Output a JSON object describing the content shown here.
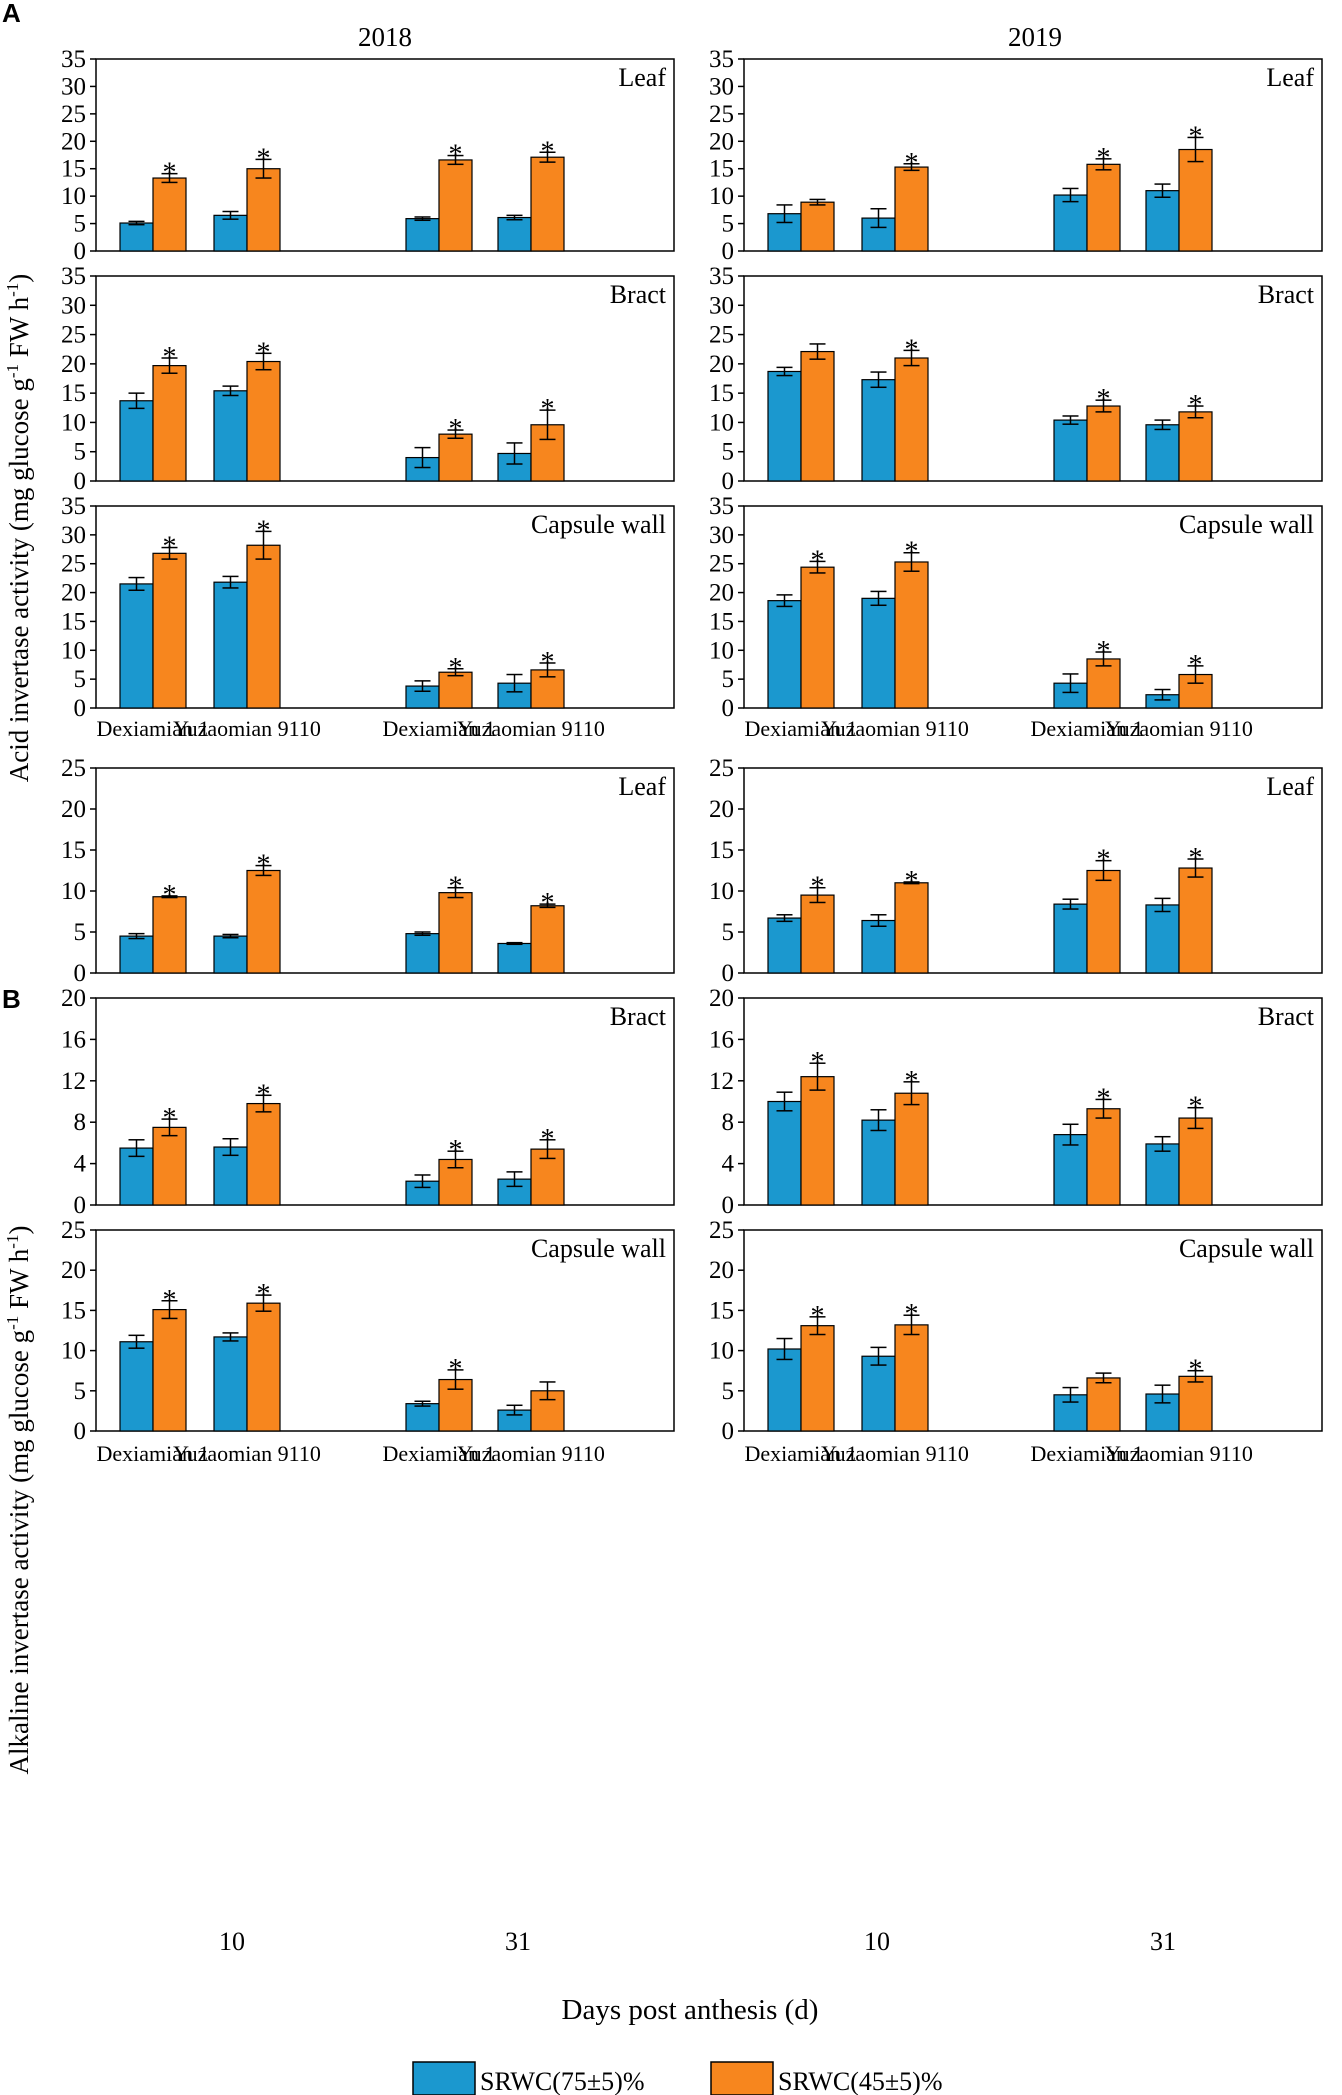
{
  "colors": {
    "well": "#1b98cf",
    "deficit": "#f7861e"
  },
  "legend": [
    {
      "label": "SRWC(75±5)%",
      "color": "#1b98cf"
    },
    {
      "label": "SRWC(45±5)%",
      "color": "#f7861e"
    }
  ],
  "x_axis": {
    "title": "Days post anthesis (d)",
    "day_labels": [
      "10",
      "31"
    ],
    "cultivars": [
      "Dexiamian 1",
      "Yuzaomian 9110",
      "Dexiamian 1",
      "Yuzaomian 9110"
    ]
  },
  "panel_A": {
    "letter": "A",
    "ylabel_main": "Acid invertase activity (mg glucose g",
    "ylabel_sup1": "-1",
    "ylabel_mid": " FW h",
    "ylabel_sup2": "-1",
    "ylabel_end": ")",
    "year_left": "2018",
    "year_right": "2019"
  },
  "panel_B": {
    "letter": "B",
    "ylabel_main": "Alkaline invertase activity (mg glucose g",
    "ylabel_sup1": "-1",
    "ylabel_mid": " FW h",
    "ylabel_sup2": "-1",
    "ylabel_end": ")"
  },
  "chart_data": [
    {
      "panel": "A",
      "year": "2018",
      "organ": "Leaf",
      "type": "bar",
      "ylim": [
        0,
        35
      ],
      "yticks": [
        0,
        5,
        10,
        15,
        20,
        25,
        30,
        35
      ],
      "bars": [
        [
          5.1,
          0.3,
          13.3,
          0.8
        ],
        [
          6.5,
          0.7,
          15.0,
          1.7
        ],
        [
          5.9,
          0.3,
          16.6,
          0.8
        ],
        [
          6.1,
          0.4,
          17.1,
          0.9
        ]
      ],
      "sig": [
        true,
        true,
        true,
        true
      ]
    },
    {
      "panel": "A",
      "year": "2019",
      "organ": "Leaf",
      "type": "bar",
      "ylim": [
        0,
        35
      ],
      "yticks": [
        0,
        5,
        10,
        15,
        20,
        25,
        30,
        35
      ],
      "bars": [
        [
          6.8,
          1.6,
          8.9,
          0.5
        ],
        [
          6.0,
          1.7,
          15.3,
          0.6
        ],
        [
          10.2,
          1.2,
          15.8,
          1.0
        ],
        [
          11.0,
          1.2,
          18.5,
          2.2
        ]
      ],
      "sig": [
        false,
        true,
        true,
        true
      ]
    },
    {
      "panel": "A",
      "year": "2018",
      "organ": "Bract",
      "type": "bar",
      "ylim": [
        0,
        35
      ],
      "yticks": [
        0,
        5,
        10,
        15,
        20,
        25,
        30,
        35
      ],
      "bars": [
        [
          13.7,
          1.3,
          19.7,
          1.3
        ],
        [
          15.4,
          0.8,
          20.4,
          1.4
        ],
        [
          4.0,
          1.7,
          8.0,
          0.7
        ],
        [
          4.7,
          1.8,
          9.6,
          2.5
        ]
      ],
      "sig": [
        true,
        true,
        true,
        true
      ]
    },
    {
      "panel": "A",
      "year": "2019",
      "organ": "Bract",
      "type": "bar",
      "ylim": [
        0,
        35
      ],
      "yticks": [
        0,
        5,
        10,
        15,
        20,
        25,
        30,
        35
      ],
      "bars": [
        [
          18.7,
          0.7,
          22.1,
          1.3
        ],
        [
          17.3,
          1.3,
          21.0,
          1.3
        ],
        [
          10.4,
          0.7,
          12.8,
          1.0
        ],
        [
          9.6,
          0.8,
          11.8,
          1.0
        ]
      ],
      "sig": [
        false,
        true,
        true,
        true
      ]
    },
    {
      "panel": "A",
      "year": "2018",
      "organ": "Capsule wall",
      "type": "bar",
      "ylim": [
        0,
        35
      ],
      "yticks": [
        0,
        5,
        10,
        15,
        20,
        25,
        30,
        35
      ],
      "bars": [
        [
          21.5,
          1.1,
          26.8,
          1.0
        ],
        [
          21.8,
          1.0,
          28.2,
          2.4
        ],
        [
          3.8,
          0.9,
          6.2,
          0.6
        ],
        [
          4.3,
          1.5,
          6.6,
          1.2
        ]
      ],
      "sig": [
        true,
        true,
        true,
        true
      ]
    },
    {
      "panel": "A",
      "year": "2019",
      "organ": "Capsule wall",
      "type": "bar",
      "ylim": [
        0,
        35
      ],
      "yticks": [
        0,
        5,
        10,
        15,
        20,
        25,
        30,
        35
      ],
      "bars": [
        [
          18.6,
          1.0,
          24.4,
          1.0
        ],
        [
          19.0,
          1.2,
          25.3,
          1.6
        ],
        [
          4.3,
          1.6,
          8.5,
          1.2
        ],
        [
          2.3,
          0.9,
          5.8,
          1.5
        ]
      ],
      "sig": [
        true,
        true,
        true,
        true
      ]
    },
    {
      "panel": "B",
      "year": "2018",
      "organ": "Leaf",
      "type": "bar",
      "ylim": [
        0,
        25
      ],
      "yticks": [
        0,
        5,
        10,
        15,
        20,
        25
      ],
      "bars": [
        [
          4.5,
          0.3,
          9.3,
          0.1
        ],
        [
          4.5,
          0.2,
          12.5,
          0.6
        ],
        [
          4.8,
          0.2,
          9.8,
          0.6
        ],
        [
          3.6,
          0.1,
          8.2,
          0.2
        ]
      ],
      "sig": [
        true,
        true,
        true,
        true
      ]
    },
    {
      "panel": "B",
      "year": "2019",
      "organ": "Leaf",
      "type": "bar",
      "ylim": [
        0,
        25
      ],
      "yticks": [
        0,
        5,
        10,
        15,
        20,
        25
      ],
      "bars": [
        [
          6.7,
          0.4,
          9.5,
          0.9
        ],
        [
          6.4,
          0.7,
          11.0,
          0.1
        ],
        [
          8.4,
          0.6,
          12.5,
          1.2
        ],
        [
          8.3,
          0.8,
          12.8,
          1.1
        ]
      ],
      "sig": [
        true,
        true,
        true,
        true
      ]
    },
    {
      "panel": "B",
      "year": "2018",
      "organ": "Bract",
      "type": "bar",
      "ylim": [
        0,
        20
      ],
      "yticks": [
        0,
        4,
        8,
        12,
        16,
        20
      ],
      "bars": [
        [
          5.5,
          0.8,
          7.5,
          0.8
        ],
        [
          5.6,
          0.8,
          9.8,
          0.8
        ],
        [
          2.3,
          0.6,
          4.4,
          0.8
        ],
        [
          2.5,
          0.7,
          5.4,
          0.9
        ]
      ],
      "sig": [
        true,
        true,
        true,
        true
      ]
    },
    {
      "panel": "B",
      "year": "2019",
      "organ": "Bract",
      "type": "bar",
      "ylim": [
        0,
        20
      ],
      "yticks": [
        0,
        4,
        8,
        12,
        16,
        20
      ],
      "bars": [
        [
          10.0,
          0.9,
          12.4,
          1.3
        ],
        [
          8.2,
          1.0,
          10.8,
          1.1
        ],
        [
          6.8,
          1.0,
          9.3,
          0.9
        ],
        [
          5.9,
          0.7,
          8.4,
          1.0
        ]
      ],
      "sig": [
        true,
        true,
        true,
        true
      ]
    },
    {
      "panel": "B",
      "year": "2018",
      "organ": "Capsule wall",
      "type": "bar",
      "ylim": [
        0,
        25
      ],
      "yticks": [
        0,
        5,
        10,
        15,
        20,
        25
      ],
      "bars": [
        [
          11.1,
          0.8,
          15.1,
          1.1
        ],
        [
          11.7,
          0.5,
          15.9,
          1.0
        ],
        [
          3.4,
          0.3,
          6.4,
          1.2
        ],
        [
          2.6,
          0.6,
          5.0,
          1.1
        ]
      ],
      "sig": [
        true,
        true,
        true,
        false
      ]
    },
    {
      "panel": "B",
      "year": "2019",
      "organ": "Capsule wall",
      "type": "bar",
      "ylim": [
        0,
        25
      ],
      "yticks": [
        0,
        5,
        10,
        15,
        20,
        25
      ],
      "bars": [
        [
          10.2,
          1.3,
          13.1,
          1.1
        ],
        [
          9.3,
          1.1,
          13.2,
          1.2
        ],
        [
          4.5,
          0.9,
          6.6,
          0.6
        ],
        [
          4.6,
          1.1,
          6.8,
          0.7
        ]
      ],
      "sig": [
        true,
        true,
        false,
        true
      ]
    }
  ]
}
